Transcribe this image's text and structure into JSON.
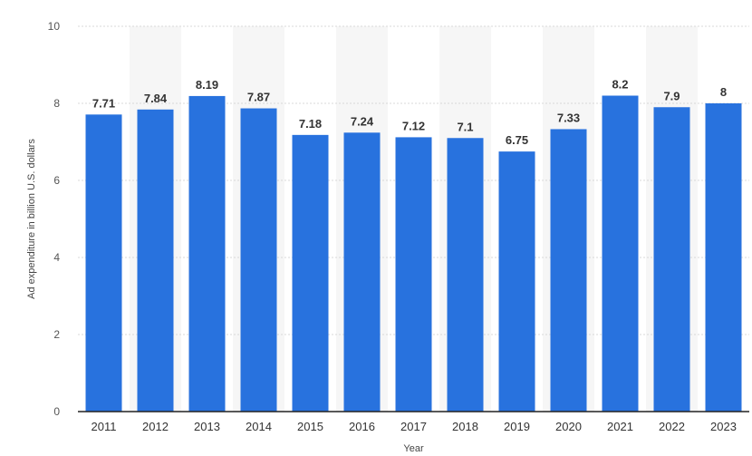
{
  "chart_data": {
    "type": "bar",
    "categories": [
      "2011",
      "2012",
      "2013",
      "2014",
      "2015",
      "2016",
      "2017",
      "2018",
      "2019",
      "2020",
      "2021",
      "2022",
      "2023"
    ],
    "values": [
      7.71,
      7.84,
      8.19,
      7.87,
      7.18,
      7.24,
      7.12,
      7.1,
      6.75,
      7.33,
      8.2,
      7.9,
      8
    ],
    "value_labels": [
      "7.71",
      "7.84",
      "8.19",
      "7.87",
      "7.18",
      "7.24",
      "7.12",
      "7.1",
      "6.75",
      "7.33",
      "8.2",
      "7.9",
      "8"
    ],
    "xlabel": "Year",
    "ylabel": "Ad expenditure in billion U.S. dollars",
    "ylim": [
      0,
      10
    ],
    "yticks": [
      "0",
      "2",
      "4",
      "6",
      "8",
      "10"
    ],
    "grid": true,
    "colors": {
      "bar": "#2872de",
      "band": "#f6f6f6",
      "grid": "#d8d8d8",
      "axis": "#222222"
    }
  }
}
